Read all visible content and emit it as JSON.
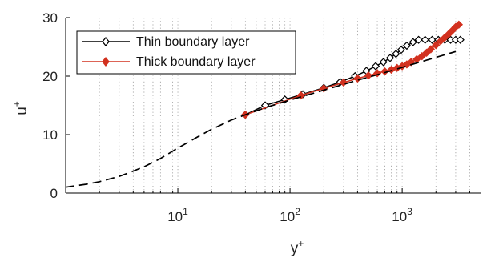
{
  "chart_data": {
    "type": "line",
    "xscale": "log",
    "xlim": [
      1,
      5000
    ],
    "ylim": [
      0,
      30
    ],
    "yticks": [
      0,
      10,
      20,
      30
    ],
    "xticks": [
      {
        "value": 10,
        "base": "10",
        "exp": "1"
      },
      {
        "value": 100,
        "base": "10",
        "exp": "2"
      },
      {
        "value": 1000,
        "base": "10",
        "exp": "3"
      }
    ],
    "xlabel": {
      "base": "y",
      "sup": "+"
    },
    "ylabel": {
      "base": "u",
      "sup": "+"
    },
    "grid": "x-minor-dotted",
    "legend_position": "top-left",
    "series": [
      {
        "name": "Thin boundary layer",
        "color": "#000000",
        "marker": "diamond",
        "x": [
          40,
          60,
          90,
          130,
          200,
          280,
          380,
          480,
          580,
          680,
          780,
          880,
          980,
          1100,
          1250,
          1400,
          1600,
          1850,
          2100,
          2400,
          2700,
          3000,
          3300
        ],
        "y": [
          13.4,
          15.0,
          16.0,
          16.9,
          18.0,
          19.0,
          20.0,
          20.9,
          21.7,
          22.4,
          23.1,
          23.8,
          24.5,
          25.2,
          25.8,
          26.2,
          26.2,
          26.2,
          26.2,
          26.2,
          26.2,
          26.2,
          26.2
        ]
      },
      {
        "name": "Thick boundary layer",
        "color": "#d2311f",
        "marker": "diamond",
        "x": [
          40,
          125,
          200,
          300,
          400,
          500,
          600,
          700,
          800,
          900,
          1000,
          1100,
          1200,
          1350,
          1500,
          1650,
          1800,
          2000,
          2200,
          2400,
          2600,
          2800,
          3000,
          3200
        ],
        "y": [
          13.4,
          16.7,
          17.9,
          18.9,
          19.6,
          20.1,
          20.5,
          20.8,
          21.1,
          21.4,
          21.7,
          22.0,
          22.4,
          22.9,
          23.4,
          24.0,
          24.6,
          25.3,
          26.0,
          26.6,
          27.2,
          27.8,
          28.4,
          28.8
        ]
      },
      {
        "style": "dashed",
        "color": "#000000",
        "x": [
          1,
          1.5,
          2,
          3,
          4,
          5,
          7,
          10,
          15,
          20,
          30,
          40,
          60,
          100,
          200,
          400,
          700,
          1000,
          2000,
          3000
        ],
        "y": [
          1.0,
          1.5,
          1.95,
          2.85,
          3.75,
          4.5,
          5.9,
          7.7,
          9.6,
          10.9,
          12.5,
          13.4,
          14.6,
          15.9,
          17.6,
          19.3,
          20.6,
          21.5,
          23.2,
          24.2
        ]
      }
    ]
  }
}
